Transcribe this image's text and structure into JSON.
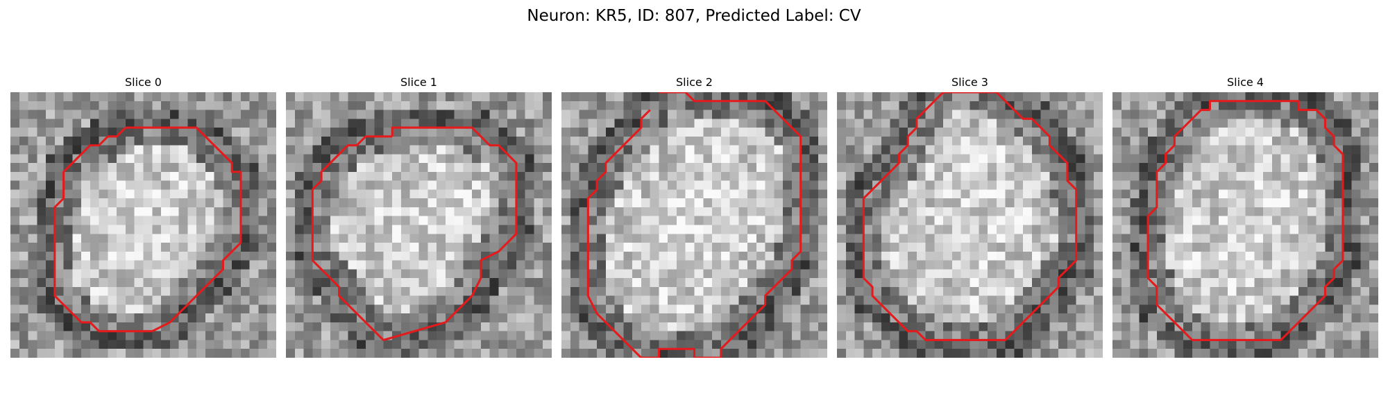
{
  "figure": {
    "title": "Neuron: KR5, ID: 807, Predicted Label: CV",
    "contour_color": "#e41a1c",
    "background_color": "#ffffff",
    "grid_size": 30,
    "panels": [
      {
        "title": "Slice 0",
        "seed": 17,
        "contour": [
          [
            13,
            4
          ],
          [
            21,
            4
          ],
          [
            25,
            8
          ],
          [
            25,
            9
          ],
          [
            26,
            9
          ],
          [
            26,
            10
          ],
          [
            26,
            11
          ],
          [
            26,
            12
          ],
          [
            26,
            13
          ],
          [
            26,
            14
          ],
          [
            26,
            15
          ],
          [
            26,
            16
          ],
          [
            26,
            17
          ],
          [
            25,
            18
          ],
          [
            24,
            19
          ],
          [
            24,
            20
          ],
          [
            23,
            21
          ],
          [
            22,
            22
          ],
          [
            21,
            23
          ],
          [
            20,
            24
          ],
          [
            19,
            25
          ],
          [
            18,
            26
          ],
          [
            16,
            27
          ],
          [
            10,
            27
          ],
          [
            9,
            26
          ],
          [
            8,
            26
          ],
          [
            7,
            25
          ],
          [
            6,
            24
          ],
          [
            5,
            23
          ],
          [
            5,
            22
          ],
          [
            5,
            21
          ],
          [
            5,
            20
          ],
          [
            5,
            19
          ],
          [
            5,
            18
          ],
          [
            5,
            17
          ],
          [
            5,
            16
          ],
          [
            5,
            15
          ],
          [
            5,
            14
          ],
          [
            5,
            13
          ],
          [
            6,
            12
          ],
          [
            6,
            11
          ],
          [
            6,
            10
          ],
          [
            6,
            9
          ],
          [
            7,
            8
          ],
          [
            8,
            7
          ],
          [
            9,
            6
          ],
          [
            10,
            6
          ],
          [
            11,
            5
          ],
          [
            12,
            5
          ]
        ],
        "closed": true
      },
      {
        "title": "Slice 1",
        "seed": 29,
        "contour": [
          [
            12,
            5
          ],
          [
            12,
            4
          ],
          [
            21,
            4
          ],
          [
            22,
            5
          ],
          [
            23,
            6
          ],
          [
            24,
            6
          ],
          [
            25,
            7
          ],
          [
            26,
            8
          ],
          [
            26,
            9
          ],
          [
            26,
            10
          ],
          [
            26,
            11
          ],
          [
            26,
            12
          ],
          [
            26,
            13
          ],
          [
            26,
            14
          ],
          [
            26,
            15
          ],
          [
            26,
            16
          ],
          [
            25,
            17
          ],
          [
            24,
            18
          ],
          [
            22,
            19
          ],
          [
            22,
            21
          ],
          [
            21,
            23
          ],
          [
            20,
            24
          ],
          [
            19,
            25
          ],
          [
            18,
            26
          ],
          [
            11,
            28
          ],
          [
            10,
            27
          ],
          [
            9,
            26
          ],
          [
            8,
            25
          ],
          [
            7,
            24
          ],
          [
            6,
            23
          ],
          [
            6,
            22
          ],
          [
            5,
            21
          ],
          [
            3,
            19
          ],
          [
            3,
            18
          ],
          [
            3,
            17
          ],
          [
            3,
            16
          ],
          [
            3,
            15
          ],
          [
            3,
            14
          ],
          [
            3,
            13
          ],
          [
            3,
            12
          ],
          [
            3,
            11
          ],
          [
            4,
            10
          ],
          [
            4,
            9
          ],
          [
            5,
            8
          ],
          [
            6,
            7
          ],
          [
            7,
            6
          ],
          [
            8,
            6
          ],
          [
            9,
            5
          ],
          [
            10,
            5
          ],
          [
            11,
            5
          ]
        ],
        "closed": true
      },
      {
        "title": "Slice 2",
        "seed": 43,
        "contour": [
          [
            11,
            0
          ],
          [
            14,
            0
          ],
          [
            15,
            1
          ],
          [
            16,
            1
          ],
          [
            17,
            1
          ],
          [
            18,
            1
          ],
          [
            19,
            1
          ],
          [
            20,
            1
          ],
          [
            21,
            1
          ],
          [
            22,
            1
          ],
          [
            23,
            1
          ],
          [
            24,
            2
          ],
          [
            25,
            3
          ],
          [
            26,
            4
          ],
          [
            27,
            5
          ],
          [
            27,
            6
          ],
          [
            27,
            7
          ],
          [
            27,
            8
          ],
          [
            27,
            9
          ],
          [
            27,
            10
          ],
          [
            27,
            11
          ],
          [
            27,
            12
          ],
          [
            27,
            13
          ],
          [
            27,
            14
          ],
          [
            27,
            15
          ],
          [
            27,
            16
          ],
          [
            27,
            17
          ],
          [
            27,
            18
          ],
          [
            26,
            19
          ],
          [
            26,
            20
          ],
          [
            25,
            21
          ],
          [
            24,
            22
          ],
          [
            23,
            23
          ],
          [
            23,
            24
          ],
          [
            22,
            25
          ],
          [
            21,
            26
          ],
          [
            20,
            27
          ],
          [
            19,
            28
          ],
          [
            18,
            29
          ],
          [
            18,
            30
          ],
          [
            15,
            30
          ],
          [
            15,
            29
          ],
          [
            13,
            29
          ],
          [
            11,
            29
          ],
          [
            11,
            30
          ],
          [
            9,
            30
          ],
          [
            8,
            29
          ],
          [
            7,
            28
          ],
          [
            6,
            27
          ],
          [
            5,
            26
          ],
          [
            4,
            25
          ],
          [
            3,
            23
          ],
          [
            3,
            22
          ],
          [
            3,
            21
          ],
          [
            3,
            20
          ],
          [
            3,
            19
          ],
          [
            3,
            18
          ],
          [
            3,
            17
          ],
          [
            3,
            16
          ],
          [
            3,
            15
          ],
          [
            3,
            14
          ],
          [
            3,
            13
          ],
          [
            3,
            12
          ],
          [
            4,
            11
          ],
          [
            4,
            10
          ],
          [
            5,
            9
          ],
          [
            5,
            8
          ],
          [
            6,
            7
          ],
          [
            7,
            6
          ],
          [
            8,
            5
          ],
          [
            9,
            4
          ],
          [
            9,
            3
          ],
          [
            10,
            2
          ]
        ],
        "closed": false
      },
      {
        "title": "Slice 3",
        "seed": 61,
        "contour": [
          [
            12,
            0
          ],
          [
            18,
            0
          ],
          [
            19,
            1
          ],
          [
            20,
            2
          ],
          [
            21,
            3
          ],
          [
            22,
            3
          ],
          [
            23,
            4
          ],
          [
            24,
            5
          ],
          [
            24,
            6
          ],
          [
            25,
            7
          ],
          [
            26,
            8
          ],
          [
            26,
            9
          ],
          [
            26,
            10
          ],
          [
            27,
            11
          ],
          [
            27,
            12
          ],
          [
            27,
            13
          ],
          [
            27,
            14
          ],
          [
            27,
            15
          ],
          [
            27,
            16
          ],
          [
            27,
            17
          ],
          [
            27,
            18
          ],
          [
            27,
            19
          ],
          [
            26,
            20
          ],
          [
            25,
            21
          ],
          [
            25,
            22
          ],
          [
            24,
            23
          ],
          [
            23,
            24
          ],
          [
            22,
            25
          ],
          [
            21,
            26
          ],
          [
            20,
            27
          ],
          [
            19,
            28
          ],
          [
            10,
            28
          ],
          [
            9,
            27
          ],
          [
            8,
            27
          ],
          [
            7,
            26
          ],
          [
            6,
            25
          ],
          [
            5,
            24
          ],
          [
            4,
            23
          ],
          [
            4,
            22
          ],
          [
            3,
            21
          ],
          [
            3,
            20
          ],
          [
            3,
            19
          ],
          [
            3,
            18
          ],
          [
            3,
            17
          ],
          [
            3,
            16
          ],
          [
            3,
            15
          ],
          [
            3,
            14
          ],
          [
            3,
            13
          ],
          [
            3,
            12
          ],
          [
            4,
            11
          ],
          [
            5,
            10
          ],
          [
            6,
            9
          ],
          [
            7,
            8
          ],
          [
            7,
            7
          ],
          [
            8,
            6
          ],
          [
            8,
            5
          ],
          [
            9,
            4
          ],
          [
            9,
            3
          ],
          [
            10,
            2
          ],
          [
            11,
            1
          ]
        ],
        "closed": true
      },
      {
        "title": "Slice 4",
        "seed": 83,
        "contour": [
          [
            11,
            2
          ],
          [
            11,
            1
          ],
          [
            21,
            1
          ],
          [
            21,
            2
          ],
          [
            23,
            2
          ],
          [
            24,
            3
          ],
          [
            24,
            4
          ],
          [
            25,
            5
          ],
          [
            25,
            6
          ],
          [
            26,
            7
          ],
          [
            26,
            8
          ],
          [
            26,
            9
          ],
          [
            26,
            10
          ],
          [
            26,
            11
          ],
          [
            26,
            12
          ],
          [
            26,
            13
          ],
          [
            26,
            14
          ],
          [
            26,
            15
          ],
          [
            26,
            16
          ],
          [
            26,
            17
          ],
          [
            26,
            18
          ],
          [
            26,
            19
          ],
          [
            25,
            20
          ],
          [
            25,
            21
          ],
          [
            24,
            22
          ],
          [
            24,
            23
          ],
          [
            23,
            24
          ],
          [
            22,
            25
          ],
          [
            21,
            26
          ],
          [
            20,
            27
          ],
          [
            19,
            28
          ],
          [
            9,
            28
          ],
          [
            8,
            27
          ],
          [
            7,
            26
          ],
          [
            6,
            25
          ],
          [
            5,
            24
          ],
          [
            5,
            23
          ],
          [
            5,
            22
          ],
          [
            4,
            21
          ],
          [
            4,
            20
          ],
          [
            4,
            19
          ],
          [
            4,
            18
          ],
          [
            4,
            17
          ],
          [
            4,
            16
          ],
          [
            4,
            15
          ],
          [
            4,
            14
          ],
          [
            5,
            13
          ],
          [
            5,
            12
          ],
          [
            5,
            11
          ],
          [
            5,
            10
          ],
          [
            5,
            9
          ],
          [
            6,
            8
          ],
          [
            6,
            7
          ],
          [
            7,
            6
          ],
          [
            7,
            5
          ],
          [
            8,
            4
          ],
          [
            9,
            3
          ],
          [
            10,
            2
          ]
        ],
        "closed": true
      }
    ]
  }
}
